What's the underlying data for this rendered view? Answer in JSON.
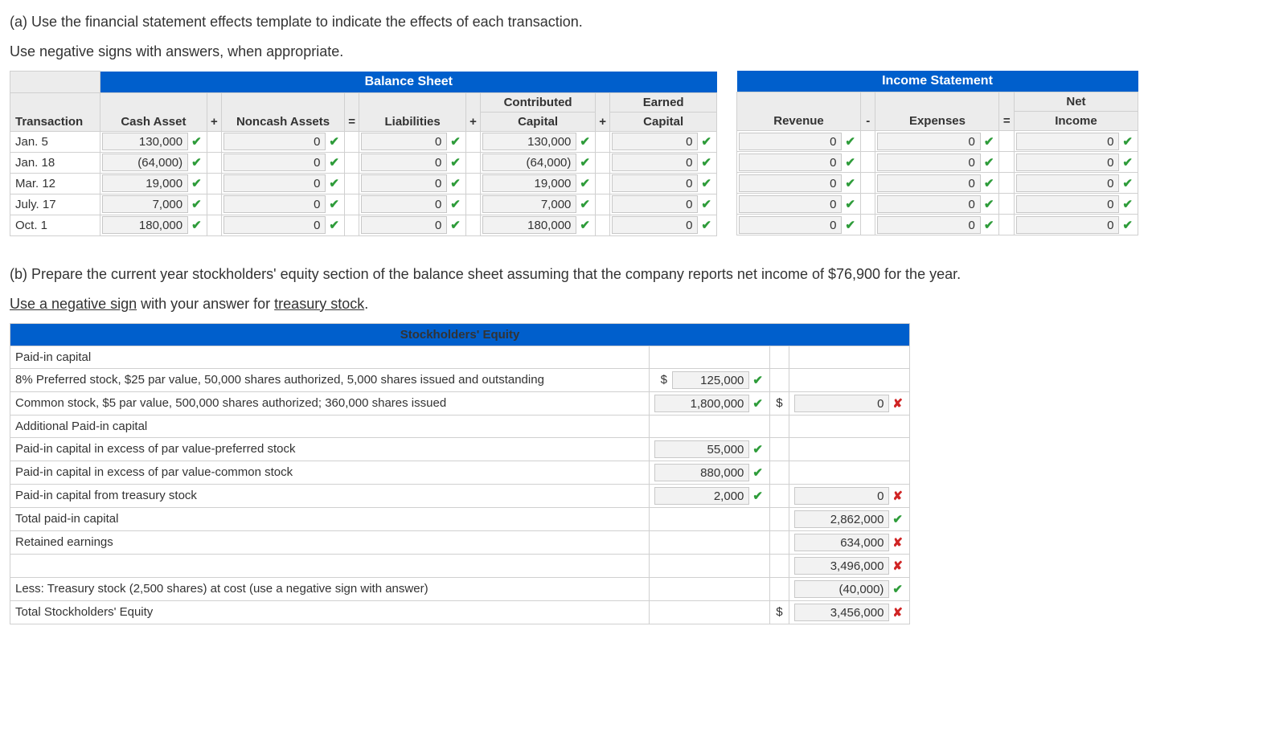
{
  "instructions": {
    "a_line1": "(a) Use the financial statement effects template to indicate the effects of each transaction.",
    "a_line2": "Use negative signs with answers, when appropriate.",
    "b_line1": "(b) Prepare the current year stockholders' equity section of the balance sheet assuming that the company reports net income of $76,900 for the year.",
    "b_line2_pre": "Use a negative sign",
    "b_line2_mid": " with your answer for ",
    "b_line2_post": "treasury stock",
    "b_line2_end": "."
  },
  "headers": {
    "balance_sheet": "Balance Sheet",
    "income_statement": "Income Statement",
    "transaction": "Transaction",
    "cash_asset": "Cash Asset",
    "noncash_assets": "Noncash Assets",
    "liabilities": "Liabilities",
    "contributed_capital": "Contributed Capital",
    "earned_capital": "Earned Capital",
    "revenue": "Revenue",
    "expenses": "Expenses",
    "net_income": "Net Income",
    "contributed": "Contributed",
    "capital": "Capital",
    "earned": "Earned",
    "net": "Net",
    "income": "Income",
    "plus": "+",
    "equals": "=",
    "minus": "-"
  },
  "rows": [
    {
      "label": "Jan. 5",
      "cash": "130,000",
      "noncash": "0",
      "liab": "0",
      "contrib": "130,000",
      "earned": "0",
      "rev": "0",
      "exp": "0",
      "ni": "0"
    },
    {
      "label": "Jan. 18",
      "cash": "(64,000)",
      "noncash": "0",
      "liab": "0",
      "contrib": "(64,000)",
      "earned": "0",
      "rev": "0",
      "exp": "0",
      "ni": "0"
    },
    {
      "label": "Mar. 12",
      "cash": "19,000",
      "noncash": "0",
      "liab": "0",
      "contrib": "19,000",
      "earned": "0",
      "rev": "0",
      "exp": "0",
      "ni": "0"
    },
    {
      "label": "July. 17",
      "cash": "7,000",
      "noncash": "0",
      "liab": "0",
      "contrib": "7,000",
      "earned": "0",
      "rev": "0",
      "exp": "0",
      "ni": "0"
    },
    {
      "label": "Oct. 1",
      "cash": "180,000",
      "noncash": "0",
      "liab": "0",
      "contrib": "180,000",
      "earned": "0",
      "rev": "0",
      "exp": "0",
      "ni": "0"
    }
  ],
  "se": {
    "title": "Stockholders' Equity",
    "lines": {
      "pic": "Paid-in capital",
      "pref": "8% Preferred stock, $25 par value, 50,000 shares authorized, 5,000 shares issued and outstanding",
      "common": "Common stock, $5 par value, 500,000 shares authorized; 360,000 shares issued",
      "apic": "Additional Paid-in capital",
      "pic_pref": "Paid-in capital in excess of par value-preferred stock",
      "pic_common": "Paid-in capital in excess of par value-common stock",
      "pic_ts": "Paid-in capital from treasury stock",
      "total_pic": "Total paid-in capital",
      "re": "Retained earnings",
      "less_ts": "Less: Treasury stock (2,500 shares) at cost (use a negative sign with answer)",
      "total_se": "Total Stockholders' Equity"
    },
    "vals": {
      "pref": "125,000",
      "common": "1,800,000",
      "common_total": "0",
      "pic_pref": "55,000",
      "pic_common": "880,000",
      "pic_ts": "2,000",
      "pic_ts_total": "0",
      "total_pic": "2,862,000",
      "re": "634,000",
      "subtotal": "3,496,000",
      "less_ts": "(40,000)",
      "total_se": "3,456,000"
    },
    "marks": {
      "pref": "ok",
      "common": "ok",
      "common_total": "bad",
      "pic_pref": "ok",
      "pic_common": "ok",
      "pic_ts": "ok",
      "pic_ts_total": "bad",
      "total_pic": "ok",
      "re": "bad",
      "subtotal": "bad",
      "less_ts": "ok",
      "total_se": "bad"
    },
    "sym": {
      "dollar": "$"
    }
  },
  "glyphs": {
    "check": "✔",
    "cross": "✘"
  }
}
